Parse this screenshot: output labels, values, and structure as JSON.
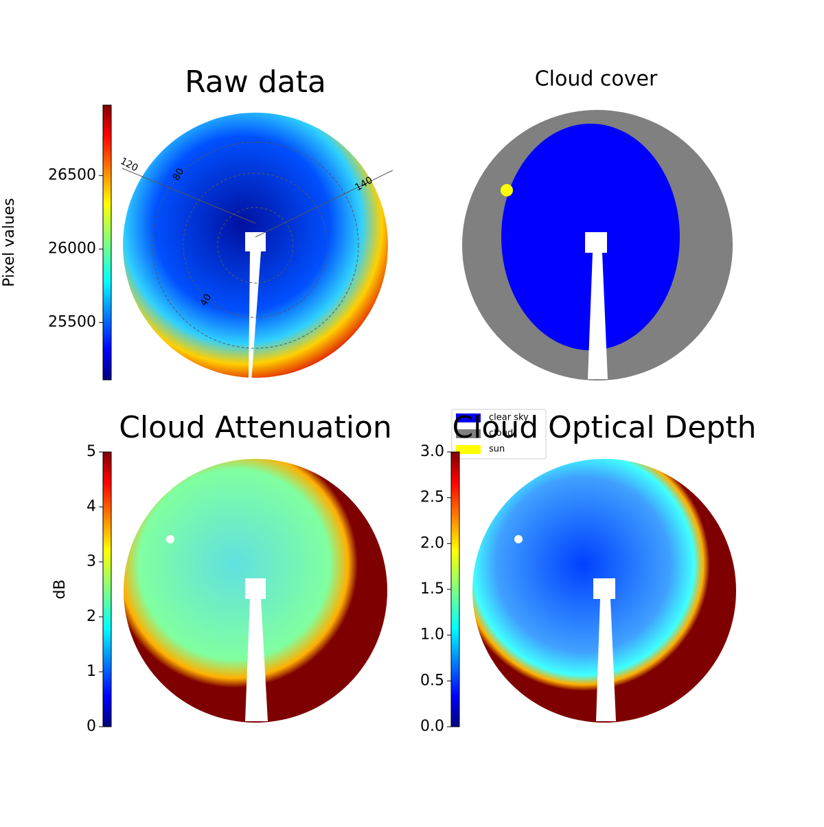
{
  "chart_data": [
    {
      "type": "image",
      "title": "Raw data",
      "colorbar_label": "Pixel values",
      "colormap": "jet",
      "ylim": [
        25110,
        26980
      ],
      "yticks": [
        25500,
        26000,
        26500
      ],
      "annotations": [
        "120",
        "80",
        "40",
        "140"
      ]
    },
    {
      "type": "image",
      "title": "Cloud cover",
      "legend": [
        {
          "name": "clear sky",
          "color": "#0000ff"
        },
        {
          "name": "cloud",
          "color": "#808080"
        },
        {
          "name": "sun",
          "color": "#ffff00"
        }
      ]
    },
    {
      "type": "image",
      "title": "Cloud Attenuation",
      "colorbar_label": "dB",
      "colormap": "jet",
      "ylim": [
        0,
        5
      ],
      "yticks": [
        0,
        1,
        2,
        3,
        4,
        5
      ]
    },
    {
      "type": "image",
      "title": "Cloud Optical Depth",
      "colormap": "jet",
      "ylim": [
        0,
        3
      ],
      "yticks": [
        {
          "value": 0,
          "label": "0.0"
        },
        {
          "value": 0.5,
          "label": "0.5"
        },
        {
          "value": 1,
          "label": "1.0"
        },
        {
          "value": 1.5,
          "label": "1.5"
        },
        {
          "value": 2,
          "label": "2.0"
        },
        {
          "value": 2.5,
          "label": "2.5"
        },
        {
          "value": 3,
          "label": "3.0"
        }
      ]
    }
  ]
}
